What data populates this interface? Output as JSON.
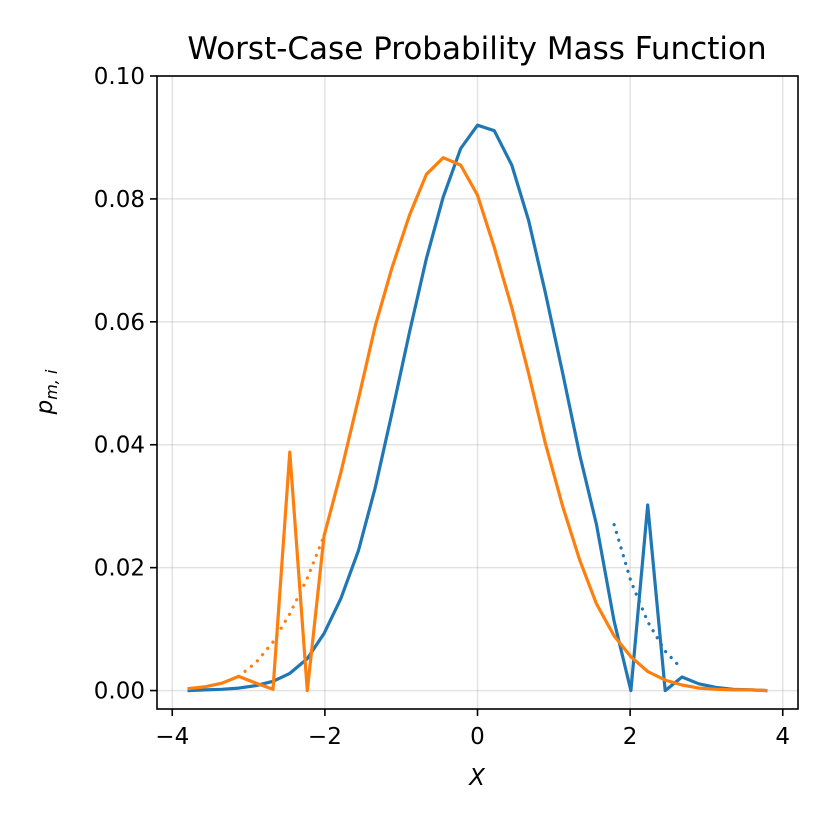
{
  "chart_data": {
    "type": "line",
    "title": "Worst-Case Probability Mass Function",
    "xlabel": "X",
    "ylabel_base": "p",
    "ylabel_sub": "m, i",
    "xlim": [
      -4.2,
      4.2
    ],
    "ylim": [
      -0.003,
      0.1
    ],
    "xticks": [
      -4,
      -2,
      0,
      2,
      4
    ],
    "xtick_labels": [
      "−4",
      "−2",
      "0",
      "2",
      "4"
    ],
    "yticks": [
      0.0,
      0.02,
      0.04,
      0.06,
      0.08,
      0.1
    ],
    "ytick_labels": [
      "0.00",
      "0.02",
      "0.04",
      "0.06",
      "0.08",
      "0.10"
    ],
    "grid": true,
    "series": [
      {
        "name": "blue-solid",
        "color": "#1f77b4",
        "style": "solid",
        "x": [
          -3.8,
          -3.58,
          -3.35,
          -3.13,
          -2.9,
          -2.68,
          -2.46,
          -2.23,
          -2.01,
          -1.79,
          -1.56,
          -1.34,
          -1.12,
          -0.89,
          -0.67,
          -0.45,
          -0.22,
          0.0,
          0.22,
          0.45,
          0.67,
          0.89,
          1.12,
          1.34,
          1.56,
          1.79,
          2.01,
          2.23,
          2.46,
          2.68,
          2.9,
          3.13,
          3.35,
          3.58,
          3.8
        ],
        "y": [
          0.0,
          0.0001,
          0.0002,
          0.0004,
          0.0008,
          0.0015,
          0.0028,
          0.0052,
          0.0093,
          0.015,
          0.0228,
          0.033,
          0.0452,
          0.0584,
          0.0703,
          0.0803,
          0.0882,
          0.092,
          0.0911,
          0.0855,
          0.0765,
          0.0647,
          0.0514,
          0.0383,
          0.027,
          0.0113,
          0.0,
          0.0302,
          0.0,
          0.0022,
          0.0011,
          0.0005,
          0.0002,
          0.0001,
          0.0
        ]
      },
      {
        "name": "blue-dotted",
        "color": "#1f77b4",
        "style": "dotted",
        "x": [
          1.79,
          2.01,
          2.23,
          2.46,
          2.68
        ],
        "y": [
          0.027,
          0.0178,
          0.0112,
          0.0064,
          0.0035
        ]
      },
      {
        "name": "orange-solid",
        "color": "#ff7f0e",
        "style": "solid",
        "x": [
          -3.8,
          -3.58,
          -3.35,
          -3.13,
          -2.9,
          -2.68,
          -2.46,
          -2.23,
          -2.01,
          -1.79,
          -1.56,
          -1.34,
          -1.12,
          -0.89,
          -0.67,
          -0.45,
          -0.22,
          0.0,
          0.22,
          0.45,
          0.67,
          0.89,
          1.12,
          1.34,
          1.56,
          1.79,
          2.01,
          2.23,
          2.46,
          2.68,
          2.9,
          3.13,
          3.35,
          3.58,
          3.8
        ],
        "y": [
          0.0003,
          0.0006,
          0.0012,
          0.0023,
          0.0012,
          0.0002,
          0.0388,
          0.0,
          0.0252,
          0.0355,
          0.0475,
          0.0593,
          0.0688,
          0.0774,
          0.084,
          0.0867,
          0.0855,
          0.0806,
          0.0721,
          0.0623,
          0.0516,
          0.0402,
          0.0298,
          0.0212,
          0.0141,
          0.0089,
          0.0055,
          0.0031,
          0.0017,
          0.0009,
          0.0004,
          0.0002,
          0.0001,
          0.0001,
          0.0
        ]
      },
      {
        "name": "orange-dotted",
        "color": "#ff7f0e",
        "style": "dotted",
        "x": [
          -3.13,
          -2.9,
          -2.68,
          -2.46,
          -2.23,
          -2.01
        ],
        "y": [
          0.0023,
          0.0046,
          0.0079,
          0.0125,
          0.0183,
          0.0252
        ]
      }
    ]
  }
}
